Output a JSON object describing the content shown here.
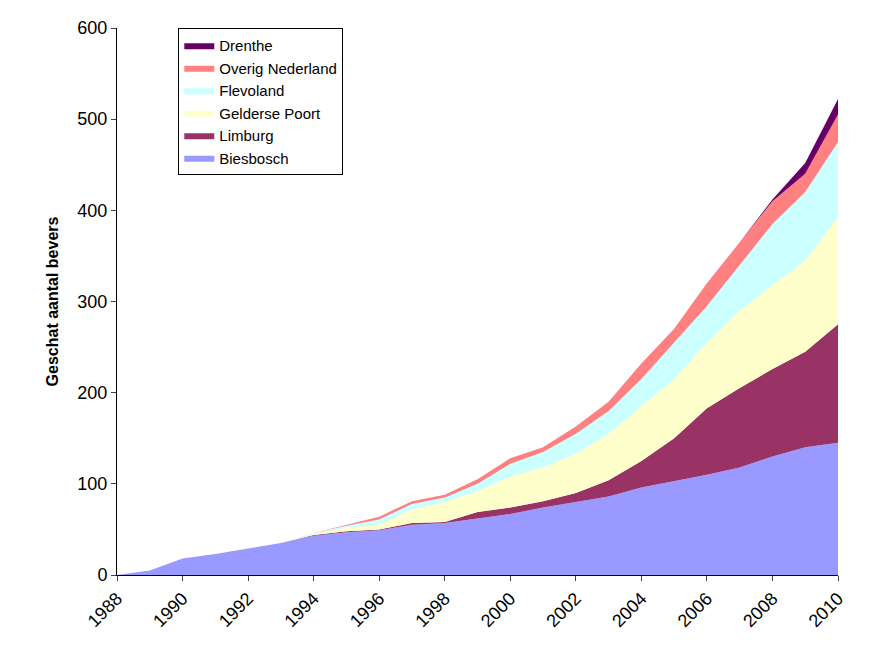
{
  "chart_data": {
    "type": "area",
    "stacked": true,
    "y_label": "Geschat aantal bevers",
    "x": [
      1988,
      1989,
      1990,
      1991,
      1992,
      1993,
      1994,
      1995,
      1996,
      1997,
      1998,
      1999,
      2000,
      2001,
      2002,
      2003,
      2004,
      2005,
      2006,
      2007,
      2008,
      2009,
      2010
    ],
    "series": [
      {
        "name": "Biesbosch",
        "color": "#9999ff",
        "values": [
          0,
          5,
          18,
          23,
          29,
          35,
          43,
          47,
          49,
          55,
          57,
          62,
          67,
          74,
          80,
          86,
          96,
          103,
          110,
          118,
          130,
          140,
          145
        ]
      },
      {
        "name": "Limburg",
        "color": "#993366",
        "values": [
          0,
          0,
          0,
          0,
          0,
          0,
          1,
          1,
          1,
          2,
          1,
          7,
          7,
          7,
          10,
          18,
          29,
          47,
          73,
          87,
          96,
          105,
          130
        ]
      },
      {
        "name": "Gelderse Poort",
        "color": "#ffffcc",
        "values": [
          0,
          0,
          0,
          0,
          0,
          0,
          1,
          4,
          5,
          15,
          22,
          23,
          34,
          37,
          43,
          51,
          60,
          65,
          72,
          85,
          92,
          100,
          118
        ]
      },
      {
        "name": "Flevoland",
        "color": "#ccffff",
        "values": [
          0,
          0,
          0,
          0,
          0,
          0,
          1,
          2,
          6,
          6,
          5,
          8,
          14,
          17,
          22,
          25,
          30,
          40,
          40,
          50,
          67,
          75,
          82
        ]
      },
      {
        "name": "Overig Nederland",
        "color": "#ff8080",
        "values": [
          0,
          0,
          0,
          0,
          0,
          0,
          0,
          1,
          3,
          3,
          3,
          5,
          6,
          5,
          8,
          10,
          17,
          15,
          25,
          25,
          25,
          20,
          30
        ]
      },
      {
        "name": "Drenthe",
        "color": "#660066",
        "values": [
          0,
          0,
          0,
          0,
          0,
          0,
          0,
          0,
          0,
          0,
          0,
          0,
          0,
          0,
          0,
          0,
          0,
          0,
          0,
          0,
          2,
          12,
          17
        ]
      }
    ],
    "xlim": [
      1988,
      2010
    ],
    "xticks": [
      1988,
      1990,
      1992,
      1994,
      1996,
      1998,
      2000,
      2002,
      2004,
      2006,
      2008,
      2010
    ],
    "ylim": [
      0,
      600
    ],
    "yticks": [
      0,
      100,
      200,
      300,
      400,
      500,
      600
    ],
    "grid": false,
    "legend": "upper left"
  }
}
